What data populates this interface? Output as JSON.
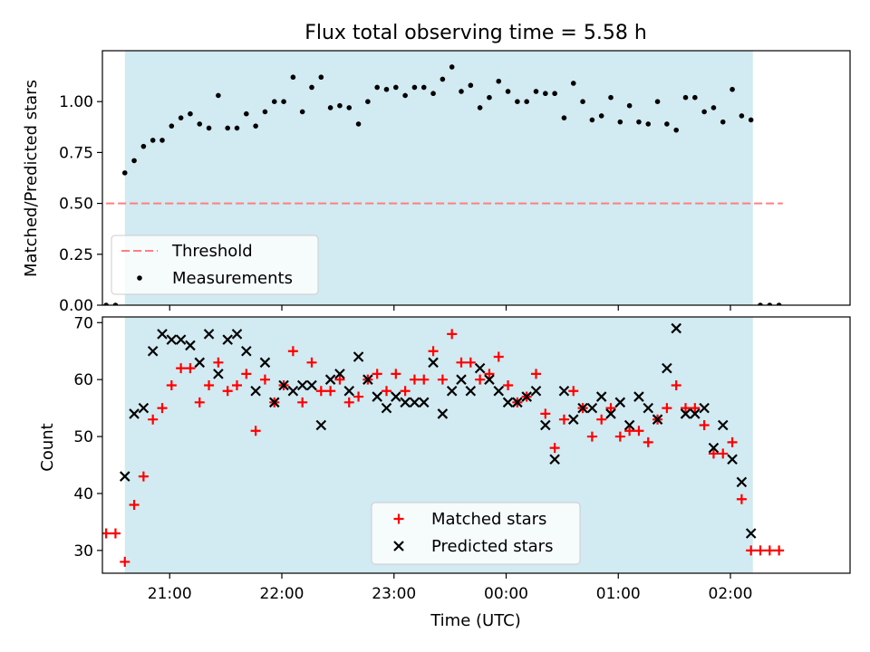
{
  "figure": {
    "title": "Flux total observing time = 5.58 h",
    "xlabel": "Time (UTC)",
    "shaded_color": "#add8e6"
  },
  "chart_data": [
    {
      "type": "scatter",
      "id": "ratio",
      "ylabel": "Matched/Predicted stars",
      "xlim": [
        "20:24",
        "03:04"
      ],
      "ylim": [
        0,
        1.25
      ],
      "yticks": [
        0.0,
        0.25,
        0.5,
        0.75,
        1.0
      ],
      "ytick_labels": [
        "0.00",
        "0.25",
        "0.50",
        "0.75",
        "1.00"
      ],
      "xticks": [
        "21:00",
        "22:00",
        "23:00",
        "00:00",
        "01:00",
        "02:00"
      ],
      "shaded_span": [
        "20:36",
        "02:12"
      ],
      "threshold": {
        "name": "Threshold",
        "value": 0.5,
        "x_range": [
          "20:26",
          "02:28"
        ],
        "color": "#ff7f7f"
      },
      "legend": {
        "placement": "lower-left",
        "entries": [
          "Threshold",
          "Measurements"
        ]
      },
      "series": [
        {
          "name": "Measurements",
          "color": "#000000",
          "points": [
            [
              "20:26",
              0.0
            ],
            [
              "20:31",
              0.0
            ],
            [
              "20:36",
              0.65
            ],
            [
              "20:41",
              0.71
            ],
            [
              "20:46",
              0.78
            ],
            [
              "20:51",
              0.81
            ],
            [
              "20:56",
              0.81
            ],
            [
              "21:01",
              0.88
            ],
            [
              "21:06",
              0.92
            ],
            [
              "21:11",
              0.94
            ],
            [
              "21:16",
              0.89
            ],
            [
              "21:21",
              0.87
            ],
            [
              "21:26",
              1.03
            ],
            [
              "21:31",
              0.87
            ],
            [
              "21:36",
              0.87
            ],
            [
              "21:41",
              0.94
            ],
            [
              "21:46",
              0.88
            ],
            [
              "21:51",
              0.95
            ],
            [
              "21:56",
              1.0
            ],
            [
              "22:01",
              1.0
            ],
            [
              "22:06",
              1.12
            ],
            [
              "22:11",
              0.95
            ],
            [
              "22:16",
              1.07
            ],
            [
              "22:21",
              1.12
            ],
            [
              "22:26",
              0.97
            ],
            [
              "22:31",
              0.98
            ],
            [
              "22:36",
              0.97
            ],
            [
              "22:41",
              0.89
            ],
            [
              "22:46",
              1.0
            ],
            [
              "22:51",
              1.07
            ],
            [
              "22:56",
              1.06
            ],
            [
              "23:01",
              1.07
            ],
            [
              "23:06",
              1.03
            ],
            [
              "23:11",
              1.07
            ],
            [
              "23:16",
              1.07
            ],
            [
              "23:21",
              1.04
            ],
            [
              "23:26",
              1.11
            ],
            [
              "23:31",
              1.17
            ],
            [
              "23:36",
              1.05
            ],
            [
              "23:41",
              1.08
            ],
            [
              "23:46",
              0.97
            ],
            [
              "23:51",
              1.02
            ],
            [
              "23:56",
              1.1
            ],
            [
              "00:01",
              1.05
            ],
            [
              "00:06",
              1.0
            ],
            [
              "00:11",
              1.0
            ],
            [
              "00:16",
              1.05
            ],
            [
              "00:21",
              1.04
            ],
            [
              "00:26",
              1.04
            ],
            [
              "00:31",
              0.92
            ],
            [
              "00:36",
              1.09
            ],
            [
              "00:41",
              1.0
            ],
            [
              "00:46",
              0.91
            ],
            [
              "00:51",
              0.93
            ],
            [
              "00:56",
              1.02
            ],
            [
              "01:01",
              0.9
            ],
            [
              "01:06",
              0.98
            ],
            [
              "01:11",
              0.9
            ],
            [
              "01:16",
              0.89
            ],
            [
              "01:21",
              1.0
            ],
            [
              "01:26",
              0.89
            ],
            [
              "01:31",
              0.86
            ],
            [
              "01:36",
              1.02
            ],
            [
              "01:41",
              1.02
            ],
            [
              "01:46",
              0.95
            ],
            [
              "01:51",
              0.97
            ],
            [
              "01:56",
              0.9
            ],
            [
              "02:01",
              1.06
            ],
            [
              "02:06",
              0.93
            ],
            [
              "02:11",
              0.91
            ],
            [
              "02:16",
              0.0
            ],
            [
              "02:21",
              0.0
            ],
            [
              "02:26",
              0.0
            ]
          ]
        }
      ]
    },
    {
      "type": "scatter",
      "id": "counts",
      "ylabel": "Count",
      "xlim": [
        "20:24",
        "03:04"
      ],
      "ylim": [
        26,
        71
      ],
      "yticks": [
        30,
        40,
        50,
        60,
        70
      ],
      "xticks": [
        "21:00",
        "22:00",
        "23:00",
        "00:00",
        "01:00",
        "02:00"
      ],
      "shaded_span": [
        "20:36",
        "02:12"
      ],
      "legend": {
        "placement": "lower-center",
        "entries": [
          "Matched stars",
          "Predicted stars"
        ]
      },
      "series": [
        {
          "name": "Matched stars",
          "marker": "plus",
          "color": "#ff0000",
          "points": [
            [
              "20:26",
              33
            ],
            [
              "20:31",
              33
            ],
            [
              "20:36",
              28
            ],
            [
              "20:41",
              38
            ],
            [
              "20:46",
              43
            ],
            [
              "20:51",
              53
            ],
            [
              "20:56",
              55
            ],
            [
              "21:01",
              59
            ],
            [
              "21:06",
              62
            ],
            [
              "21:11",
              62
            ],
            [
              "21:16",
              56
            ],
            [
              "21:21",
              59
            ],
            [
              "21:26",
              63
            ],
            [
              "21:31",
              58
            ],
            [
              "21:36",
              59
            ],
            [
              "21:41",
              61
            ],
            [
              "21:46",
              51
            ],
            [
              "21:51",
              60
            ],
            [
              "21:56",
              56
            ],
            [
              "22:01",
              59
            ],
            [
              "22:06",
              65
            ],
            [
              "22:11",
              56
            ],
            [
              "22:16",
              63
            ],
            [
              "22:21",
              58
            ],
            [
              "22:26",
              58
            ],
            [
              "22:31",
              60
            ],
            [
              "22:36",
              56
            ],
            [
              "22:41",
              57
            ],
            [
              "22:46",
              60
            ],
            [
              "22:51",
              61
            ],
            [
              "22:56",
              58
            ],
            [
              "23:01",
              61
            ],
            [
              "23:06",
              58
            ],
            [
              "23:11",
              60
            ],
            [
              "23:16",
              60
            ],
            [
              "23:21",
              65
            ],
            [
              "23:26",
              60
            ],
            [
              "23:31",
              68
            ],
            [
              "23:36",
              63
            ],
            [
              "23:41",
              63
            ],
            [
              "23:46",
              60
            ],
            [
              "23:51",
              61
            ],
            [
              "23:56",
              64
            ],
            [
              "00:01",
              59
            ],
            [
              "00:06",
              56
            ],
            [
              "00:11",
              57
            ],
            [
              "00:16",
              61
            ],
            [
              "00:21",
              54
            ],
            [
              "00:26",
              48
            ],
            [
              "00:31",
              53
            ],
            [
              "00:36",
              58
            ],
            [
              "00:41",
              55
            ],
            [
              "00:46",
              50
            ],
            [
              "00:51",
              53
            ],
            [
              "00:56",
              55
            ],
            [
              "01:01",
              50
            ],
            [
              "01:06",
              51
            ],
            [
              "01:11",
              51
            ],
            [
              "01:16",
              49
            ],
            [
              "01:21",
              53
            ],
            [
              "01:26",
              55
            ],
            [
              "01:31",
              59
            ],
            [
              "01:36",
              55
            ],
            [
              "01:41",
              55
            ],
            [
              "01:46",
              52
            ],
            [
              "01:51",
              47
            ],
            [
              "01:56",
              47
            ],
            [
              "02:01",
              49
            ],
            [
              "02:06",
              39
            ],
            [
              "02:11",
              30
            ],
            [
              "02:16",
              30
            ],
            [
              "02:21",
              30
            ],
            [
              "02:26",
              30
            ]
          ]
        },
        {
          "name": "Predicted stars",
          "marker": "x",
          "color": "#000000",
          "points": [
            [
              "20:36",
              43
            ],
            [
              "20:41",
              54
            ],
            [
              "20:46",
              55
            ],
            [
              "20:51",
              65
            ],
            [
              "20:56",
              68
            ],
            [
              "21:01",
              67
            ],
            [
              "21:06",
              67
            ],
            [
              "21:11",
              66
            ],
            [
              "21:16",
              63
            ],
            [
              "21:21",
              68
            ],
            [
              "21:26",
              61
            ],
            [
              "21:31",
              67
            ],
            [
              "21:36",
              68
            ],
            [
              "21:41",
              65
            ],
            [
              "21:46",
              58
            ],
            [
              "21:51",
              63
            ],
            [
              "21:56",
              56
            ],
            [
              "22:01",
              59
            ],
            [
              "22:06",
              58
            ],
            [
              "22:11",
              59
            ],
            [
              "22:16",
              59
            ],
            [
              "22:21",
              52
            ],
            [
              "22:26",
              60
            ],
            [
              "22:31",
              61
            ],
            [
              "22:36",
              58
            ],
            [
              "22:41",
              64
            ],
            [
              "22:46",
              60
            ],
            [
              "22:51",
              57
            ],
            [
              "22:56",
              55
            ],
            [
              "23:01",
              57
            ],
            [
              "23:06",
              56
            ],
            [
              "23:11",
              56
            ],
            [
              "23:16",
              56
            ],
            [
              "23:21",
              63
            ],
            [
              "23:26",
              54
            ],
            [
              "23:31",
              58
            ],
            [
              "23:36",
              60
            ],
            [
              "23:41",
              58
            ],
            [
              "23:46",
              62
            ],
            [
              "23:51",
              60
            ],
            [
              "23:56",
              58
            ],
            [
              "00:01",
              56
            ],
            [
              "00:06",
              56
            ],
            [
              "00:11",
              57
            ],
            [
              "00:16",
              58
            ],
            [
              "00:21",
              52
            ],
            [
              "00:26",
              46
            ],
            [
              "00:31",
              58
            ],
            [
              "00:36",
              53
            ],
            [
              "00:41",
              55
            ],
            [
              "00:46",
              55
            ],
            [
              "00:51",
              57
            ],
            [
              "00:56",
              54
            ],
            [
              "01:01",
              56
            ],
            [
              "01:06",
              52
            ],
            [
              "01:11",
              57
            ],
            [
              "01:16",
              55
            ],
            [
              "01:21",
              53
            ],
            [
              "01:26",
              62
            ],
            [
              "01:31",
              69
            ],
            [
              "01:36",
              54
            ],
            [
              "01:41",
              54
            ],
            [
              "01:46",
              55
            ],
            [
              "01:51",
              48
            ],
            [
              "01:56",
              52
            ],
            [
              "02:01",
              46
            ],
            [
              "02:06",
              42
            ],
            [
              "02:11",
              33
            ]
          ]
        }
      ]
    }
  ]
}
